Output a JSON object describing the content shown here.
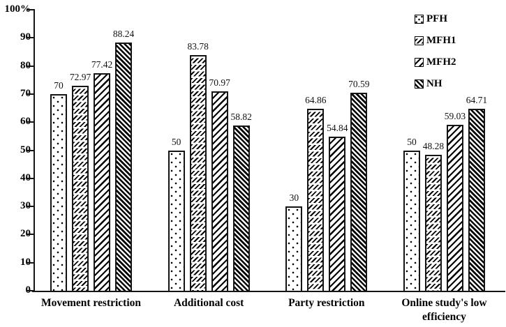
{
  "chart_data": {
    "type": "bar",
    "title": "",
    "categories": [
      "Movement restriction",
      "Additional cost",
      "Party restriction",
      "Online study's low efficiency"
    ],
    "category_lines": [
      [
        "Movement restriction"
      ],
      [
        "Additional cost"
      ],
      [
        "Party restriction"
      ],
      [
        "Online study's low",
        "efficiency"
      ]
    ],
    "series": [
      {
        "name": "PFH",
        "pattern": "dotted",
        "values": [
          70,
          50,
          30,
          50
        ],
        "labels": [
          "70",
          "50",
          "30",
          "50"
        ]
      },
      {
        "name": "MFH1",
        "pattern": "short-dash-rows",
        "values": [
          72.97,
          83.78,
          64.86,
          48.28
        ],
        "labels": [
          "72.97",
          "83.78",
          "64.86",
          "48.28"
        ]
      },
      {
        "name": "MFH2",
        "pattern": "diagonal-hatch",
        "values": [
          77.42,
          70.97,
          54.84,
          59.03
        ],
        "labels": [
          "77.42",
          "70.97",
          "54.84",
          "59.03"
        ]
      },
      {
        "name": "NH",
        "pattern": "dense-diagonal-hatch",
        "values": [
          88.24,
          58.82,
          70.59,
          64.71
        ],
        "labels": [
          "88.24",
          "58.82",
          "70.59",
          "64.71"
        ]
      }
    ],
    "y_axis": {
      "min": 0,
      "max": 100,
      "tick_step": 10,
      "unit": "%",
      "ticks": [
        {
          "label": "100%",
          "value": 100
        },
        {
          "label": "90",
          "value": 90
        },
        {
          "label": "80",
          "value": 80
        },
        {
          "label": "70",
          "value": 70
        },
        {
          "label": "60",
          "value": 60
        },
        {
          "label": "50",
          "value": 50
        },
        {
          "label": "40",
          "value": 40
        },
        {
          "label": "30",
          "value": 30
        },
        {
          "label": "20",
          "value": 20
        },
        {
          "label": "10",
          "value": 10
        },
        {
          "label": "0",
          "value": 0
        }
      ]
    },
    "legend": {
      "position": "top-right",
      "entries": [
        "PFH",
        "MFH1",
        "MFH2",
        "NH"
      ]
    },
    "grid": false,
    "colors": {
      "foreground": "#000000",
      "background": "#ffffff"
    }
  }
}
